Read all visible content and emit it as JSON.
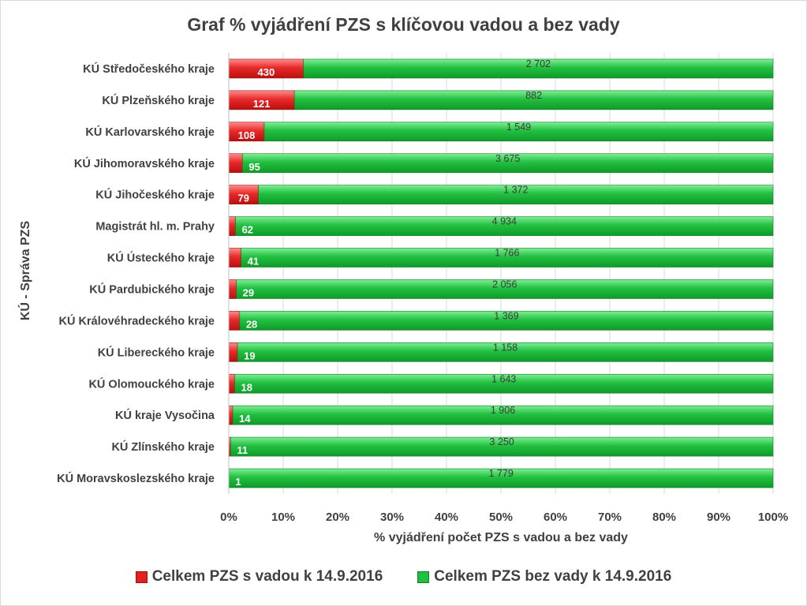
{
  "chart_data": {
    "type": "bar",
    "orientation": "horizontal",
    "stacking": "percent",
    "title": "Graf % vyjádření PZS s klíčovou vadou a bez vady",
    "xlabel": "% vyjádření počet PZS s vadou a bez vady",
    "ylabel": "KÚ  - Správa PZS",
    "xlim": [
      0,
      100
    ],
    "x_ticks": [
      "0%",
      "10%",
      "20%",
      "30%",
      "40%",
      "50%",
      "60%",
      "70%",
      "80%",
      "90%",
      "100%"
    ],
    "grid": "vertical",
    "legend_position": "bottom",
    "categories": [
      "KÚ Středočeského kraje",
      "KÚ Plzeňského kraje",
      "KÚ Karlovarského kraje",
      "KÚ Jihomoravského kraje",
      "KÚ Jihočeského kraje",
      "Magistrát hl. m. Prahy",
      "KÚ Ústeckého kraje",
      "KÚ Pardubického kraje",
      "KÚ Královéhradeckého kraje",
      "KÚ Libereckého kraje",
      "KÚ Olomouckého kraje",
      "KÚ kraje Vysočina",
      "KÚ Zlínského kraje",
      "KÚ Moravskoslezského kraje"
    ],
    "series": [
      {
        "name": "Celkem PZS s vadou k  14.9.2016",
        "color": "#e32020",
        "values": [
          430,
          121,
          108,
          95,
          79,
          62,
          41,
          29,
          28,
          19,
          18,
          14,
          11,
          1
        ],
        "labels": [
          "430",
          "121",
          "108",
          "95",
          "79",
          "62",
          "41",
          "29",
          "28",
          "19",
          "18",
          "14",
          "11",
          "1"
        ]
      },
      {
        "name": "Celkem PZS bez vady k  14.9.2016",
        "color": "#1fbf3f",
        "values": [
          2702,
          882,
          1549,
          3675,
          1372,
          4934,
          1766,
          2056,
          1369,
          1158,
          1643,
          1906,
          3250,
          1779
        ],
        "labels": [
          "2 702",
          "882",
          "1 549",
          "3 675",
          "1 372",
          "4 934",
          "1 766",
          "2 056",
          "1 369",
          "1 158",
          "1 643",
          "1 906",
          "3 250",
          "1 779"
        ]
      }
    ]
  }
}
